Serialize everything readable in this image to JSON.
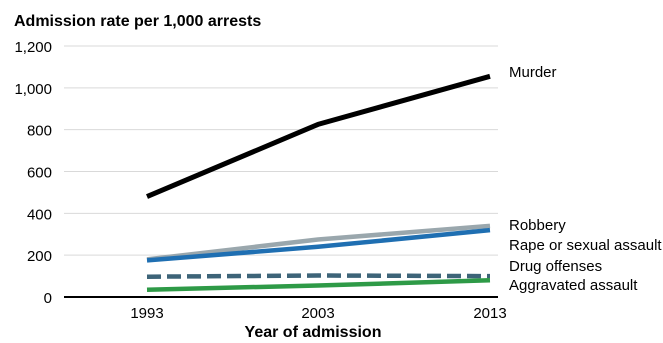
{
  "chart_data": {
    "type": "line",
    "title": "",
    "ylabel": "Admission rate per 1,000 arrests",
    "xlabel": "Year of admission",
    "x": [
      "1993",
      "2003",
      "2013"
    ],
    "ylim": [
      0,
      1200
    ],
    "yticks": [
      "0",
      "200",
      "400",
      "600",
      "800",
      "1,000",
      "1,200"
    ],
    "ytick_values": [
      0,
      200,
      400,
      600,
      800,
      1000,
      1200
    ],
    "grid": "horizontal",
    "series": [
      {
        "name": "Murder",
        "values": [
          480,
          825,
          1055
        ],
        "color": "#000000",
        "dashed": false
      },
      {
        "name": "Robbery",
        "values": [
          180,
          275,
          340
        ],
        "color": "#9aa7ad",
        "dashed": false
      },
      {
        "name": "Rape or sexual assault",
        "values": [
          175,
          240,
          320
        ],
        "color": "#1f6fb2",
        "dashed": false
      },
      {
        "name": "Drug offenses",
        "values": [
          97,
          103,
          100
        ],
        "color": "#3d6478",
        "dashed": true
      },
      {
        "name": "Aggravated assault",
        "values": [
          35,
          55,
          80
        ],
        "color": "#2e9a47",
        "dashed": false
      }
    ]
  }
}
